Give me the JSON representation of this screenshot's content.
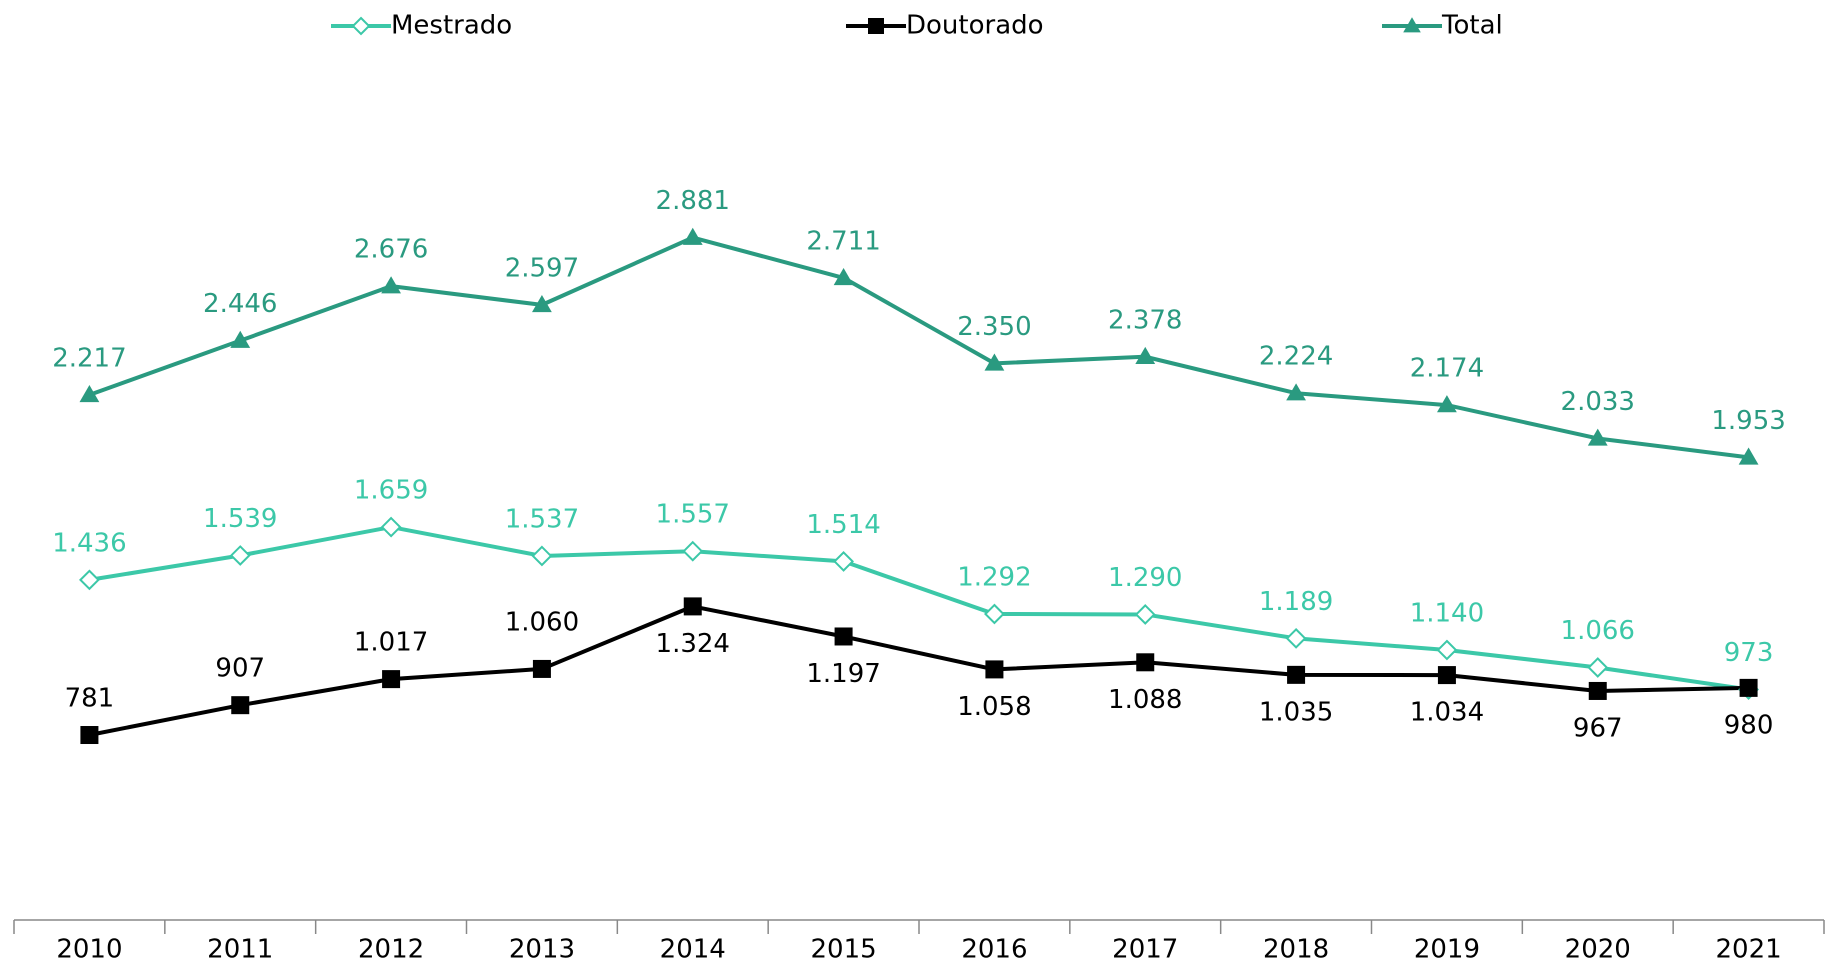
{
  "chart_data": {
    "type": "line",
    "categories": [
      "2010",
      "2011",
      "2012",
      "2013",
      "2014",
      "2015",
      "2016",
      "2017",
      "2018",
      "2019",
      "2020",
      "2021"
    ],
    "series": [
      {
        "name": "Mestrado",
        "color": "#3cc8a8",
        "marker": "diamond",
        "values": [
          1436,
          1539,
          1659,
          1537,
          1557,
          1514,
          1292,
          1290,
          1189,
          1140,
          1066,
          973
        ],
        "value_labels": [
          "1.436",
          "1.539",
          "1.659",
          "1.537",
          "1.557",
          "1.514",
          "1.292",
          "1.290",
          "1.189",
          "1.140",
          "1.066",
          "973"
        ]
      },
      {
        "name": "Doutorado",
        "color": "#000000",
        "marker": "square",
        "values": [
          781,
          907,
          1017,
          1060,
          1324,
          1197,
          1058,
          1088,
          1035,
          1034,
          967,
          980
        ],
        "value_labels": [
          "781",
          "907",
          "1.017",
          "1.060",
          "1.324",
          "1.197",
          "1.058",
          "1.088",
          "1.035",
          "1.034",
          "967",
          "980"
        ]
      },
      {
        "name": "Total",
        "color": "#2a9a80",
        "marker": "triangle",
        "values": [
          2217,
          2446,
          2676,
          2597,
          2881,
          2711,
          2350,
          2378,
          2224,
          2174,
          2033,
          1953
        ],
        "value_labels": [
          "2.217",
          "2.446",
          "2.676",
          "2.597",
          "2.881",
          "2.711",
          "2.350",
          "2.378",
          "2.224",
          "2.174",
          "2.033",
          "1.953"
        ]
      }
    ],
    "ylim": [
      0,
      3500
    ],
    "grid": false,
    "legend": "top"
  }
}
